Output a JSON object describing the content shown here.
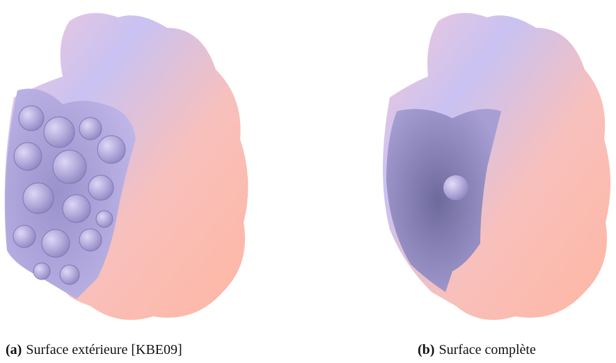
{
  "figures": [
    {
      "label": "(a)",
      "caption": "Surface extérieure [KBE09]"
    },
    {
      "label": "(b)",
      "caption": "Surface complète"
    }
  ]
}
